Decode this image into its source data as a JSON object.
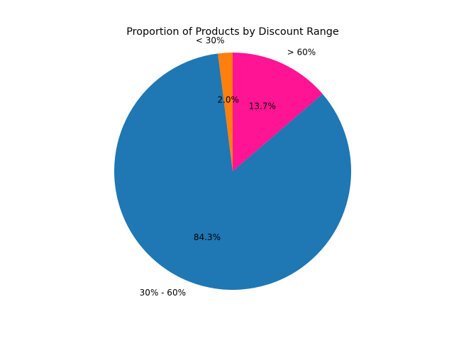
{
  "chart_data": {
    "type": "pie",
    "title": "Proportion of Products by Discount Range",
    "start_angle_deg": 90,
    "direction": "counterclockwise",
    "slices": [
      {
        "label": "< 30%",
        "value": 2.0,
        "pct_label": "2.0%",
        "color": "#ff7f0e"
      },
      {
        "label": "30% - 60%",
        "value": 84.3,
        "pct_label": "84.3%",
        "color": "#1f77b4"
      },
      {
        "label": "> 60%",
        "value": 13.7,
        "pct_label": "13.7%",
        "color": "#ff1493"
      }
    ]
  }
}
